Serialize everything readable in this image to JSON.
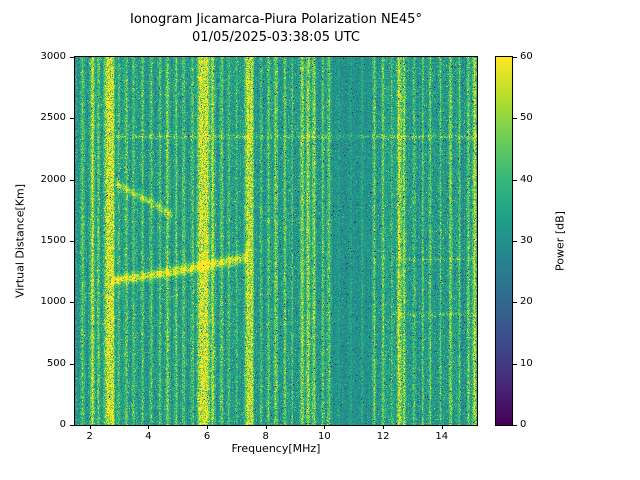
{
  "title": {
    "line1": "Ionogram Jicamarca-Piura Polarization NE45°",
    "line2": "01/05/2025-03:38:05 UTC"
  },
  "axes": {
    "xlabel": "Frequency[MHz]",
    "ylabel": "Virtual Distance[Km]",
    "x_ticks": [
      2,
      4,
      6,
      8,
      10,
      12,
      14
    ],
    "y_ticks": [
      0,
      500,
      1000,
      1500,
      2000,
      2500,
      3000
    ]
  },
  "colorbar": {
    "label": "Power [dB]",
    "ticks": [
      0,
      10,
      20,
      30,
      40,
      50,
      60
    ],
    "lim": [
      0,
      60
    ],
    "colormap": "viridis"
  },
  "chart_data": {
    "type": "heatmap",
    "title": "Ionogram Jicamarca-Piura Polarization NE45° 01/05/2025-03:38:05 UTC",
    "xlabel": "Frequency[MHz]",
    "ylabel": "Virtual Distance[Km]",
    "value_label": "Power [dB]",
    "colormap": "viridis",
    "xlim": [
      1.5,
      15.2
    ],
    "ylim": [
      0,
      3000
    ],
    "clim": [
      0,
      60
    ],
    "seed": 20250105,
    "noise": {
      "mean": 31.5,
      "std": 4.2
    },
    "bright_speckle": {
      "density": 0.06,
      "min": 5,
      "max": 14
    },
    "dark_speckle_regions": [
      {
        "fmin": 7.9,
        "fmax": 15.2,
        "density": 0.012,
        "min": 2,
        "max": 18
      },
      {
        "fmin": 1.5,
        "fmax": 7.9,
        "density": 0.004,
        "min": 4,
        "max": 20
      }
    ],
    "quiet_regions": [
      {
        "fmin": 10.25,
        "fmax": 11.6,
        "factor": 0.65,
        "offset": -1.5
      }
    ],
    "rfi_stripes": [
      {
        "freq": 1.75,
        "width": 0.05,
        "power": 44
      },
      {
        "freq": 2.1,
        "width": 0.05,
        "power": 53
      },
      {
        "freq": 2.3,
        "width": 0.04,
        "power": 46
      },
      {
        "freq": 2.62,
        "width": 0.09,
        "power": 58
      },
      {
        "freq": 2.78,
        "width": 0.05,
        "power": 54
      },
      {
        "freq": 3.0,
        "width": 0.04,
        "power": 42
      },
      {
        "freq": 3.25,
        "width": 0.04,
        "power": 45
      },
      {
        "freq": 3.5,
        "width": 0.04,
        "power": 42
      },
      {
        "freq": 3.8,
        "width": 0.04,
        "power": 43
      },
      {
        "freq": 4.1,
        "width": 0.04,
        "power": 42
      },
      {
        "freq": 4.4,
        "width": 0.04,
        "power": 43
      },
      {
        "freq": 4.65,
        "width": 0.05,
        "power": 47
      },
      {
        "freq": 4.95,
        "width": 0.04,
        "power": 44
      },
      {
        "freq": 5.2,
        "width": 0.04,
        "power": 43
      },
      {
        "freq": 5.5,
        "width": 0.04,
        "power": 44
      },
      {
        "freq": 5.78,
        "width": 0.08,
        "power": 57
      },
      {
        "freq": 5.98,
        "width": 0.07,
        "power": 57
      },
      {
        "freq": 6.2,
        "width": 0.05,
        "power": 50
      },
      {
        "freq": 6.5,
        "width": 0.04,
        "power": 45
      },
      {
        "freq": 6.75,
        "width": 0.04,
        "power": 43
      },
      {
        "freq": 7.0,
        "width": 0.03,
        "power": 41
      },
      {
        "freq": 7.38,
        "width": 0.06,
        "power": 55
      },
      {
        "freq": 7.52,
        "width": 0.05,
        "power": 53
      },
      {
        "freq": 7.85,
        "width": 0.03,
        "power": 42
      },
      {
        "freq": 8.1,
        "width": 0.04,
        "power": 44
      },
      {
        "freq": 8.35,
        "width": 0.05,
        "power": 46
      },
      {
        "freq": 8.65,
        "width": 0.04,
        "power": 44
      },
      {
        "freq": 8.9,
        "width": 0.03,
        "power": 42
      },
      {
        "freq": 9.25,
        "width": 0.05,
        "power": 49
      },
      {
        "freq": 9.45,
        "width": 0.05,
        "power": 50
      },
      {
        "freq": 9.65,
        "width": 0.05,
        "power": 48
      },
      {
        "freq": 9.95,
        "width": 0.04,
        "power": 44
      },
      {
        "freq": 10.15,
        "width": 0.04,
        "power": 45
      },
      {
        "freq": 10.5,
        "width": 0.03,
        "power": 40
      },
      {
        "freq": 10.9,
        "width": 0.03,
        "power": 40
      },
      {
        "freq": 11.3,
        "width": 0.03,
        "power": 41
      },
      {
        "freq": 11.7,
        "width": 0.04,
        "power": 45
      },
      {
        "freq": 12.0,
        "width": 0.04,
        "power": 44
      },
      {
        "freq": 12.3,
        "width": 0.03,
        "power": 42
      },
      {
        "freq": 12.55,
        "width": 0.06,
        "power": 55
      },
      {
        "freq": 12.72,
        "width": 0.04,
        "power": 50
      },
      {
        "freq": 13.05,
        "width": 0.04,
        "power": 43
      },
      {
        "freq": 13.35,
        "width": 0.03,
        "power": 42
      },
      {
        "freq": 13.6,
        "width": 0.04,
        "power": 44
      },
      {
        "freq": 13.95,
        "width": 0.03,
        "power": 42
      },
      {
        "freq": 14.3,
        "width": 0.05,
        "power": 46
      },
      {
        "freq": 14.6,
        "width": 0.03,
        "power": 43
      },
      {
        "freq": 14.9,
        "width": 0.04,
        "power": 47
      },
      {
        "freq": 15.12,
        "width": 0.05,
        "power": 53
      }
    ],
    "echo_traces": [
      {
        "name": "F-region-echo-1",
        "power": 53,
        "thickness_km": 28,
        "points": [
          [
            2.75,
            1175
          ],
          [
            3.6,
            1205
          ],
          [
            4.6,
            1240
          ],
          [
            5.6,
            1285
          ],
          [
            6.6,
            1330
          ],
          [
            7.4,
            1365
          ]
        ]
      },
      {
        "name": "F-region-echo-2",
        "power": 47,
        "thickness_km": 24,
        "points": [
          [
            2.85,
            1975
          ],
          [
            3.5,
            1890
          ],
          [
            4.2,
            1800
          ],
          [
            4.85,
            1700
          ]
        ]
      }
    ],
    "horizontal_artifacts": [
      {
        "alt": 2350,
        "fmin": 2.9,
        "fmax": 15.2,
        "power": 45,
        "thickness_km": 12,
        "duty": 0.55
      },
      {
        "alt": 900,
        "fmin": 12.3,
        "fmax": 15.2,
        "power": 43,
        "thickness_km": 10,
        "duty": 0.5
      },
      {
        "alt": 1350,
        "fmin": 12.3,
        "fmax": 15.2,
        "power": 42,
        "thickness_km": 10,
        "duty": 0.5
      }
    ]
  }
}
